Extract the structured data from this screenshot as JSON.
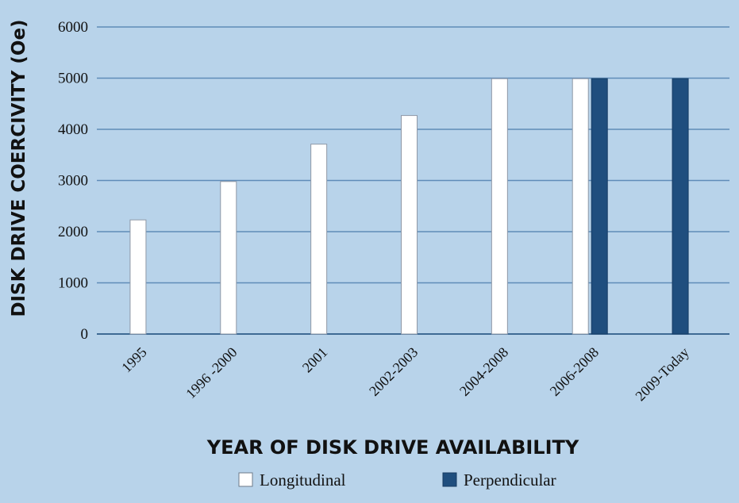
{
  "chart_data": {
    "type": "bar",
    "title": "",
    "xlabel": "YEAR OF DISK DRIVE AVAILABILITY",
    "ylabel": "DISK DRIVE COERCIVITY (Oe)",
    "ylim": [
      0,
      6000
    ],
    "yticks": [
      0,
      1000,
      2000,
      3000,
      4000,
      5000,
      6000
    ],
    "categories": [
      "1995",
      "1996 -2000",
      "2001",
      "2002-2003",
      "2004-2008",
      "2006-2008",
      "2009-Today"
    ],
    "series": [
      {
        "name": "Longitudinal",
        "color": "#ffffff",
        "values": [
          2230,
          2980,
          3710,
          4270,
          4990,
          4990,
          null
        ]
      },
      {
        "name": "Perpendicular",
        "color": "#1f4e7e",
        "values": [
          null,
          null,
          null,
          null,
          null,
          4990,
          4990
        ]
      }
    ],
    "grid": true,
    "legend_position": "bottom"
  }
}
